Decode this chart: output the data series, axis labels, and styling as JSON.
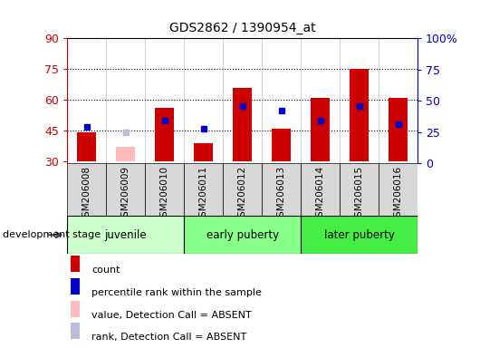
{
  "title": "GDS2862 / 1390954_at",
  "samples": [
    "GSM206008",
    "GSM206009",
    "GSM206010",
    "GSM206011",
    "GSM206012",
    "GSM206013",
    "GSM206014",
    "GSM206015",
    "GSM206016"
  ],
  "count_values": [
    44,
    null,
    56,
    39,
    66,
    46,
    61,
    75,
    61
  ],
  "count_absent": [
    null,
    37,
    null,
    null,
    null,
    null,
    null,
    null,
    null
  ],
  "rank_values": [
    47,
    null,
    50,
    46,
    57,
    55,
    50,
    57,
    48
  ],
  "rank_absent": [
    null,
    44,
    null,
    null,
    null,
    null,
    null,
    null,
    null
  ],
  "ylim_left": [
    29,
    90
  ],
  "ylim_right": [
    0,
    100
  ],
  "yticks_left": [
    30,
    45,
    60,
    75,
    90
  ],
  "yticks_right": [
    0,
    25,
    50,
    75,
    100
  ],
  "ytick_labels_left": [
    "30",
    "45",
    "60",
    "75",
    "90"
  ],
  "ytick_labels_right": [
    "0",
    "25",
    "50",
    "75",
    "100%"
  ],
  "bar_bottom": 30,
  "bar_color": "#cc0000",
  "bar_absent_color": "#ffbbbb",
  "rank_color": "#0000cc",
  "rank_absent_color": "#bbbbdd",
  "group_labels": [
    "juvenile",
    "early puberty",
    "later puberty"
  ],
  "group_starts": [
    0,
    3,
    6
  ],
  "group_ends": [
    3,
    6,
    9
  ],
  "group_colors": [
    "#ccffcc",
    "#88ff88",
    "#44ee44"
  ],
  "bar_width": 0.5,
  "development_label": "development stage",
  "legend_labels": [
    "count",
    "percentile rank within the sample",
    "value, Detection Call = ABSENT",
    "rank, Detection Call = ABSENT"
  ],
  "legend_colors": [
    "#cc0000",
    "#0000cc",
    "#ffbbbb",
    "#bbbbdd"
  ]
}
